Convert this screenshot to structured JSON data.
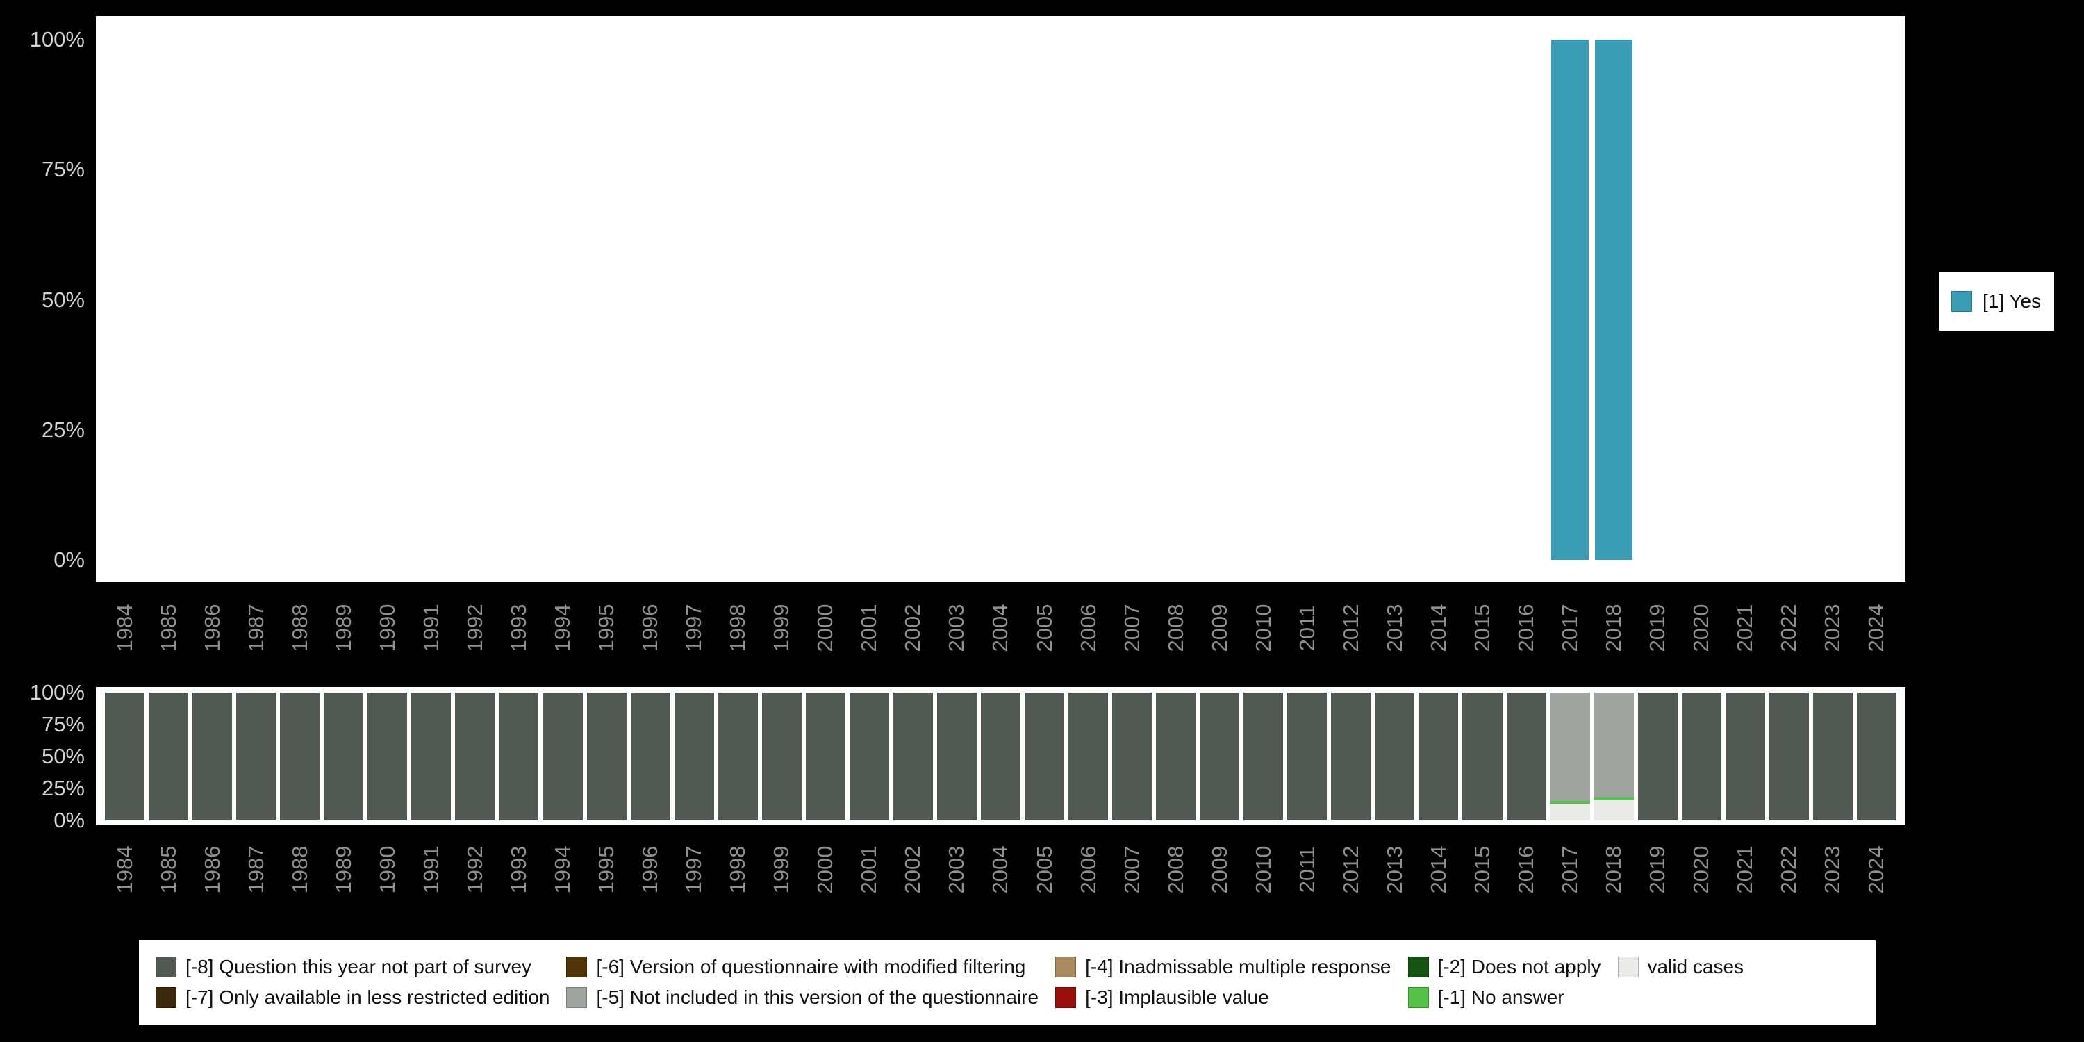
{
  "colors": {
    "background": "#000000",
    "panel": "#ffffff",
    "y_tick_text": "#d4d4d4",
    "x_tick_text": "#8f8f8f",
    "legend_text": "#111111"
  },
  "chart_data": [
    {
      "type": "bar",
      "title": "",
      "xlabel": "",
      "ylabel": "",
      "x": [
        "1984",
        "1985",
        "1986",
        "1987",
        "1988",
        "1989",
        "1990",
        "1991",
        "1992",
        "1993",
        "1994",
        "1995",
        "1996",
        "1997",
        "1998",
        "1999",
        "2000",
        "2001",
        "2002",
        "2003",
        "2004",
        "2005",
        "2006",
        "2007",
        "2008",
        "2009",
        "2010",
        "2011",
        "2012",
        "2013",
        "2014",
        "2015",
        "2016",
        "2017",
        "2018",
        "2019",
        "2020",
        "2021",
        "2022",
        "2023",
        "2024"
      ],
      "ylim": [
        0,
        100
      ],
      "y_tick_labels": [
        "100%",
        "75%",
        "50%",
        "25%",
        "0%"
      ],
      "grid": false,
      "legend_position": "right",
      "series": [
        {
          "name": "[1] Yes",
          "color": "#3a9db5",
          "values": [
            0,
            0,
            0,
            0,
            0,
            0,
            0,
            0,
            0,
            0,
            0,
            0,
            0,
            0,
            0,
            0,
            0,
            0,
            0,
            0,
            0,
            0,
            0,
            0,
            0,
            0,
            0,
            0,
            0,
            0,
            0,
            0,
            0,
            100,
            100,
            0,
            0,
            0,
            0,
            0,
            0
          ]
        }
      ]
    },
    {
      "type": "stacked-bar",
      "title": "",
      "xlabel": "",
      "ylabel": "",
      "x": [
        "1984",
        "1985",
        "1986",
        "1987",
        "1988",
        "1989",
        "1990",
        "1991",
        "1992",
        "1993",
        "1994",
        "1995",
        "1996",
        "1997",
        "1998",
        "1999",
        "2000",
        "2001",
        "2002",
        "2003",
        "2004",
        "2005",
        "2006",
        "2007",
        "2008",
        "2009",
        "2010",
        "2011",
        "2012",
        "2013",
        "2014",
        "2015",
        "2016",
        "2017",
        "2018",
        "2019",
        "2020",
        "2021",
        "2022",
        "2023",
        "2024"
      ],
      "ylim": [
        0,
        100
      ],
      "y_tick_labels": [
        "100%",
        "75%",
        "50%",
        "25%",
        "0%"
      ],
      "grid": false,
      "legend_position": "bottom",
      "series": [
        {
          "name": "[-8] Question this year not part of survey",
          "color": "#505a52",
          "values": [
            100,
            100,
            100,
            100,
            100,
            100,
            100,
            100,
            100,
            100,
            100,
            100,
            100,
            100,
            100,
            100,
            100,
            100,
            100,
            100,
            100,
            100,
            100,
            100,
            100,
            100,
            100,
            100,
            100,
            100,
            100,
            100,
            100,
            0,
            0,
            100,
            100,
            100,
            100,
            100,
            100
          ]
        },
        {
          "name": "[-7] Only available in less restricted edition",
          "color": "#3d290c",
          "values": [
            0,
            0,
            0,
            0,
            0,
            0,
            0,
            0,
            0,
            0,
            0,
            0,
            0,
            0,
            0,
            0,
            0,
            0,
            0,
            0,
            0,
            0,
            0,
            0,
            0,
            0,
            0,
            0,
            0,
            0,
            0,
            0,
            0,
            0,
            0,
            0,
            0,
            0,
            0,
            0,
            0
          ]
        },
        {
          "name": "[-6] Version of questionnaire with modified filtering",
          "color": "#4f3409",
          "values": [
            0,
            0,
            0,
            0,
            0,
            0,
            0,
            0,
            0,
            0,
            0,
            0,
            0,
            0,
            0,
            0,
            0,
            0,
            0,
            0,
            0,
            0,
            0,
            0,
            0,
            0,
            0,
            0,
            0,
            0,
            0,
            0,
            0,
            0,
            0,
            0,
            0,
            0,
            0,
            0,
            0
          ]
        },
        {
          "name": "[-5] Not included in this version of the questionnaire",
          "color": "#9ea69f",
          "values": [
            0,
            0,
            0,
            0,
            0,
            0,
            0,
            0,
            0,
            0,
            0,
            0,
            0,
            0,
            0,
            0,
            0,
            0,
            0,
            0,
            0,
            0,
            0,
            0,
            0,
            0,
            0,
            0,
            0,
            0,
            0,
            0,
            0,
            85,
            82,
            0,
            0,
            0,
            0,
            0,
            0
          ]
        },
        {
          "name": "[-4] Inadmissable multiple response",
          "color": "#a98a5e",
          "values": [
            0,
            0,
            0,
            0,
            0,
            0,
            0,
            0,
            0,
            0,
            0,
            0,
            0,
            0,
            0,
            0,
            0,
            0,
            0,
            0,
            0,
            0,
            0,
            0,
            0,
            0,
            0,
            0,
            0,
            0,
            0,
            0,
            0,
            0,
            0,
            0,
            0,
            0,
            0,
            0,
            0
          ]
        },
        {
          "name": "[-3] Implausible value",
          "color": "#990f0b",
          "values": [
            0,
            0,
            0,
            0,
            0,
            0,
            0,
            0,
            0,
            0,
            0,
            0,
            0,
            0,
            0,
            0,
            0,
            0,
            0,
            0,
            0,
            0,
            0,
            0,
            0,
            0,
            0,
            0,
            0,
            0,
            0,
            0,
            0,
            0,
            0,
            0,
            0,
            0,
            0,
            0,
            0
          ]
        },
        {
          "name": "[-2] Does not apply",
          "color": "#155410",
          "values": [
            0,
            0,
            0,
            0,
            0,
            0,
            0,
            0,
            0,
            0,
            0,
            0,
            0,
            0,
            0,
            0,
            0,
            0,
            0,
            0,
            0,
            0,
            0,
            0,
            0,
            0,
            0,
            0,
            0,
            0,
            0,
            0,
            0,
            0,
            0,
            0,
            0,
            0,
            0,
            0,
            0
          ]
        },
        {
          "name": "[-1] No answer",
          "color": "#56c24a",
          "values": [
            0,
            0,
            0,
            0,
            0,
            0,
            0,
            0,
            0,
            0,
            0,
            0,
            0,
            0,
            0,
            0,
            0,
            0,
            0,
            0,
            0,
            0,
            0,
            0,
            0,
            0,
            0,
            0,
            0,
            0,
            0,
            0,
            0,
            2,
            2,
            0,
            0,
            0,
            0,
            0,
            0
          ]
        },
        {
          "name": "valid cases",
          "color": "#e8ebe6",
          "values": [
            0,
            0,
            0,
            0,
            0,
            0,
            0,
            0,
            0,
            0,
            0,
            0,
            0,
            0,
            0,
            0,
            0,
            0,
            0,
            0,
            0,
            0,
            0,
            0,
            0,
            0,
            0,
            0,
            0,
            0,
            0,
            0,
            0,
            13,
            16,
            0,
            0,
            0,
            0,
            0,
            0
          ]
        }
      ]
    }
  ],
  "bottom_legend": {
    "items": [
      {
        "label": "[-8] Question this year not part of survey",
        "color": "#505a52"
      },
      {
        "label": "[-6] Version of questionnaire with modified filtering",
        "color": "#4f3409"
      },
      {
        "label": "[-4] Inadmissable multiple response",
        "color": "#a98a5e"
      },
      {
        "label": "[-2] Does not apply",
        "color": "#155410"
      },
      {
        "label": "valid cases",
        "color": "#e8ebe6"
      },
      {
        "label": "[-7] Only available in less restricted edition",
        "color": "#3d290c"
      },
      {
        "label": "[-5] Not included in this version of the questionnaire",
        "color": "#9ea69f"
      },
      {
        "label": "[-3] Implausible value",
        "color": "#990f0b"
      },
      {
        "label": "[-1] No answer",
        "color": "#56c24a"
      }
    ]
  }
}
